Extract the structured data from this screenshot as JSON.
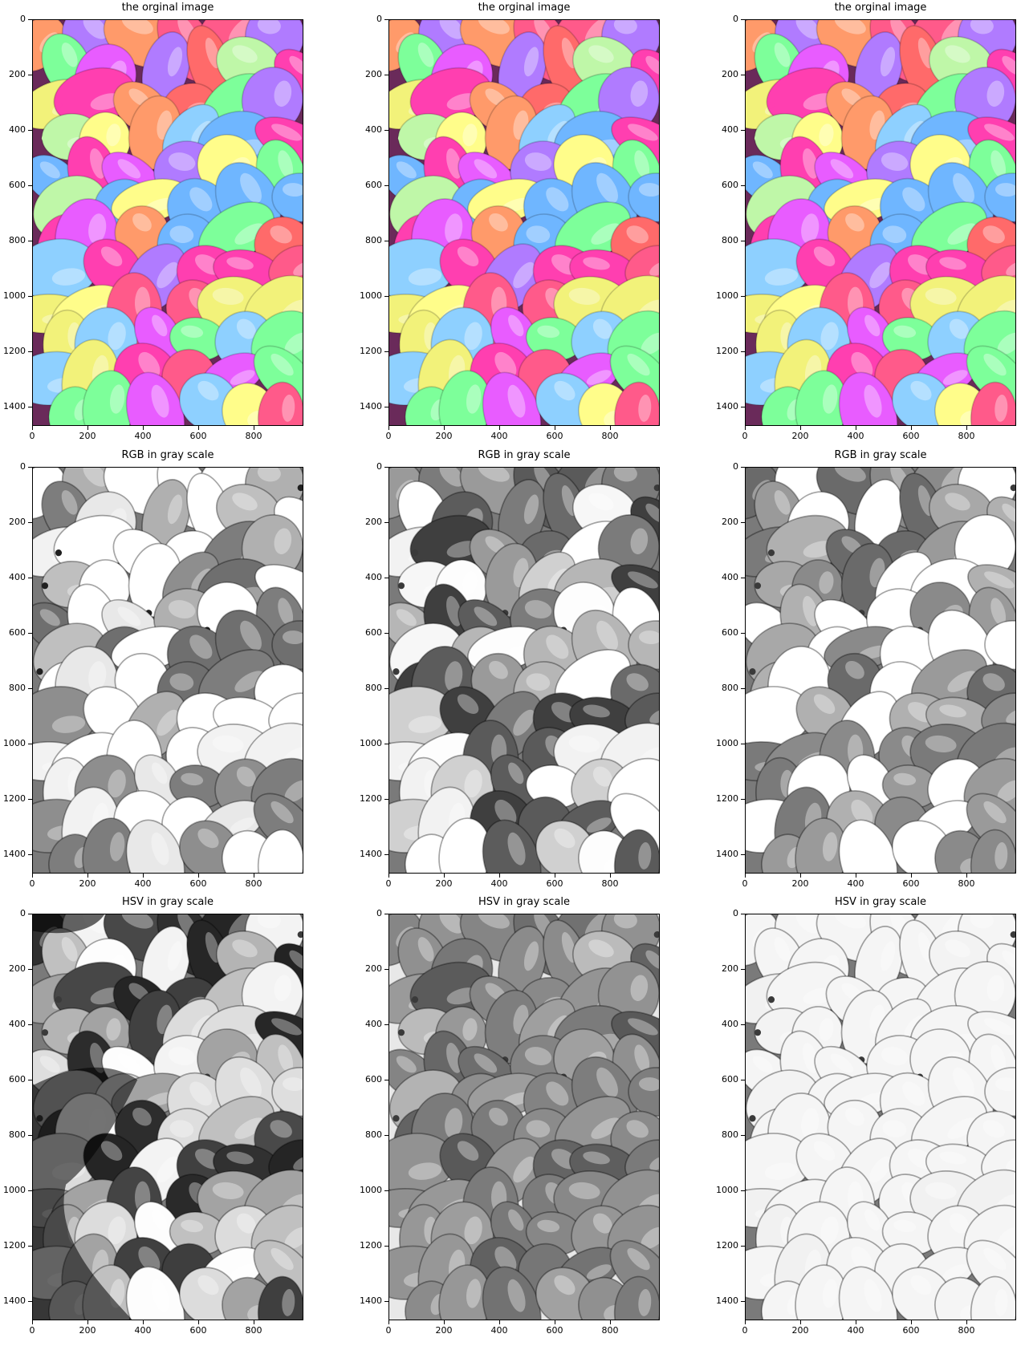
{
  "figure": {
    "rows": [
      {
        "key": "original",
        "title": "the orginal image",
        "panels": [
          {
            "variant": "color"
          },
          {
            "variant": "color"
          },
          {
            "variant": "color"
          }
        ]
      },
      {
        "key": "rgb_gray",
        "title": "RGB in gray scale",
        "panels": [
          {
            "variant": "gray-red-channel"
          },
          {
            "variant": "gray-green-channel"
          },
          {
            "variant": "gray-blue-channel"
          }
        ]
      },
      {
        "key": "hsv_gray",
        "title": "HSV in gray scale",
        "panels": [
          {
            "variant": "gray-hue-channel"
          },
          {
            "variant": "gray-saturation-channel"
          },
          {
            "variant": "gray-value-channel"
          }
        ]
      }
    ],
    "axes": {
      "xlim": [
        0,
        980
      ],
      "ylim": [
        1470,
        0
      ],
      "x_ticks": [
        "0",
        "200",
        "400",
        "600",
        "800"
      ],
      "y_ticks": [
        "0",
        "200",
        "400",
        "600",
        "800",
        "1000",
        "1200",
        "1400"
      ]
    },
    "colors": {
      "background": "#ffffff",
      "axis": "#000000",
      "balloon_palette": [
        "#ff3fb0",
        "#ff6a6a",
        "#f2f27a",
        "#8ed0ff",
        "#b07bff",
        "#7dff9a",
        "#ff9a6a",
        "#e85cff",
        "#6fb6ff",
        "#fffd8a",
        "#ff5a8a",
        "#bff7a8"
      ]
    }
  }
}
